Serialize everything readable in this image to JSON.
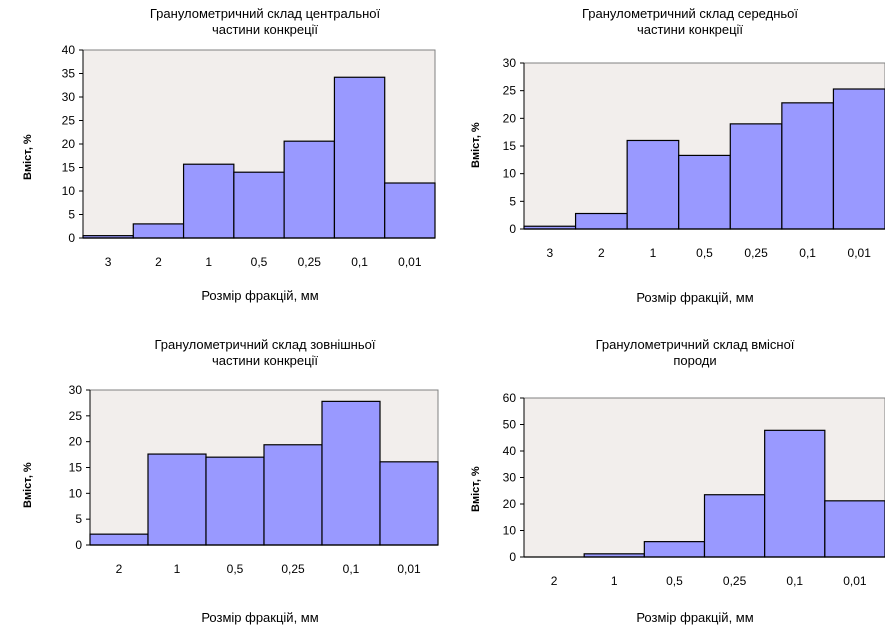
{
  "chart_data": [
    {
      "type": "bar",
      "title": "Гранулометричний склад центральної\nчастини конкреції",
      "xlabel": "Розмір фракцій, мм",
      "ylabel": "Вміст, %",
      "categories": [
        "3",
        "2",
        "1",
        "0,5",
        "0,25",
        "0,1",
        "0,01"
      ],
      "values": [
        0.5,
        3,
        15.7,
        14,
        20.6,
        34.2,
        11.7
      ],
      "ylim": [
        0,
        40
      ],
      "yticks": [
        "0",
        "5",
        "10",
        "15",
        "20",
        "25",
        "30",
        "35",
        "40"
      ],
      "grid": false
    },
    {
      "type": "bar",
      "title": "Гранулометричний склад середньої\nчастини конкреції",
      "xlabel": "Розмір фракцій, мм",
      "ylabel": "Вміст, %",
      "categories": [
        "3",
        "2",
        "1",
        "0,5",
        "0,25",
        "0,1",
        "0,01"
      ],
      "values": [
        0.5,
        2.8,
        16,
        13.3,
        19,
        22.8,
        25.3
      ],
      "ylim": [
        0,
        30
      ],
      "yticks": [
        "0",
        "5",
        "10",
        "15",
        "20",
        "25",
        "30"
      ],
      "grid": false
    },
    {
      "type": "bar",
      "title": "Гранулометричний склад зовнішньої\nчастини конкреції",
      "xlabel": "Розмір фракцій, мм",
      "ylabel": "Вміст, %",
      "categories": [
        "2",
        "1",
        "0,5",
        "0,25",
        "0,1",
        "0,01"
      ],
      "values": [
        2.1,
        17.6,
        17,
        19.4,
        27.8,
        16.1
      ],
      "ylim": [
        0,
        30
      ],
      "yticks": [
        "0",
        "5",
        "10",
        "15",
        "20",
        "25",
        "30"
      ],
      "grid": false
    },
    {
      "type": "bar",
      "title": "Гранулометричний склад вмісної\nпороди",
      "xlabel": "Розмір фракцій, мм",
      "ylabel": "Вміст, %",
      "categories": [
        "2",
        "1",
        "0,5",
        "0,25",
        "0,1",
        "0,01"
      ],
      "values": [
        0,
        1.2,
        5.8,
        23.5,
        47.8,
        21.2
      ],
      "ylim": [
        0,
        60
      ],
      "yticks": [
        "0",
        "10",
        "20",
        "30",
        "40",
        "50",
        "60"
      ],
      "grid": false
    }
  ],
  "colors": {
    "bar_fill": "#9999ff",
    "bar_stroke": "#000000",
    "plot_bg": "#f2eeec",
    "plot_border": "#808080"
  }
}
